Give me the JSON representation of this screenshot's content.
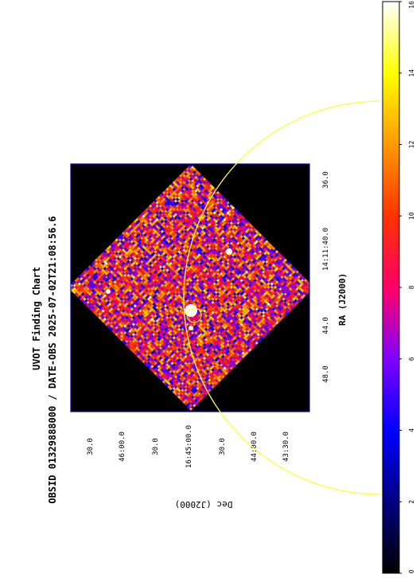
{
  "chart_data": {
    "type": "heatmap",
    "title": "UVOT Finding Chart",
    "subtitle": "OBSID 01329888000 / DATE-OBS 2025-07-02T21:08:56.6",
    "xlabel": "RA (J2000)",
    "ylabel": "Dec (J2000)",
    "ra_ticks": [
      "48.0",
      "44.0",
      "14:11:40.0",
      "36.0"
    ],
    "dec_ticks": [
      "43:30.0",
      "44:00.0",
      "30.0",
      "16:45:00.0",
      "30.0",
      "46:00.0",
      "30.0"
    ],
    "colorbar": {
      "range": [
        0,
        16
      ],
      "ticks": [
        "0",
        "2",
        "4",
        "6",
        "8",
        "10",
        "12",
        "14",
        "16"
      ],
      "colormap": [
        "#000000",
        "#000080",
        "#0000ff",
        "#8000ff",
        "#ff0066",
        "#ff3300",
        "#ff9900",
        "#ffff00",
        "#ffffff"
      ]
    },
    "field_rotation_deg": 45,
    "grid": false,
    "colors": {
      "frame": "#0000aa",
      "circle": "#ffff33",
      "background": "#000000"
    }
  }
}
